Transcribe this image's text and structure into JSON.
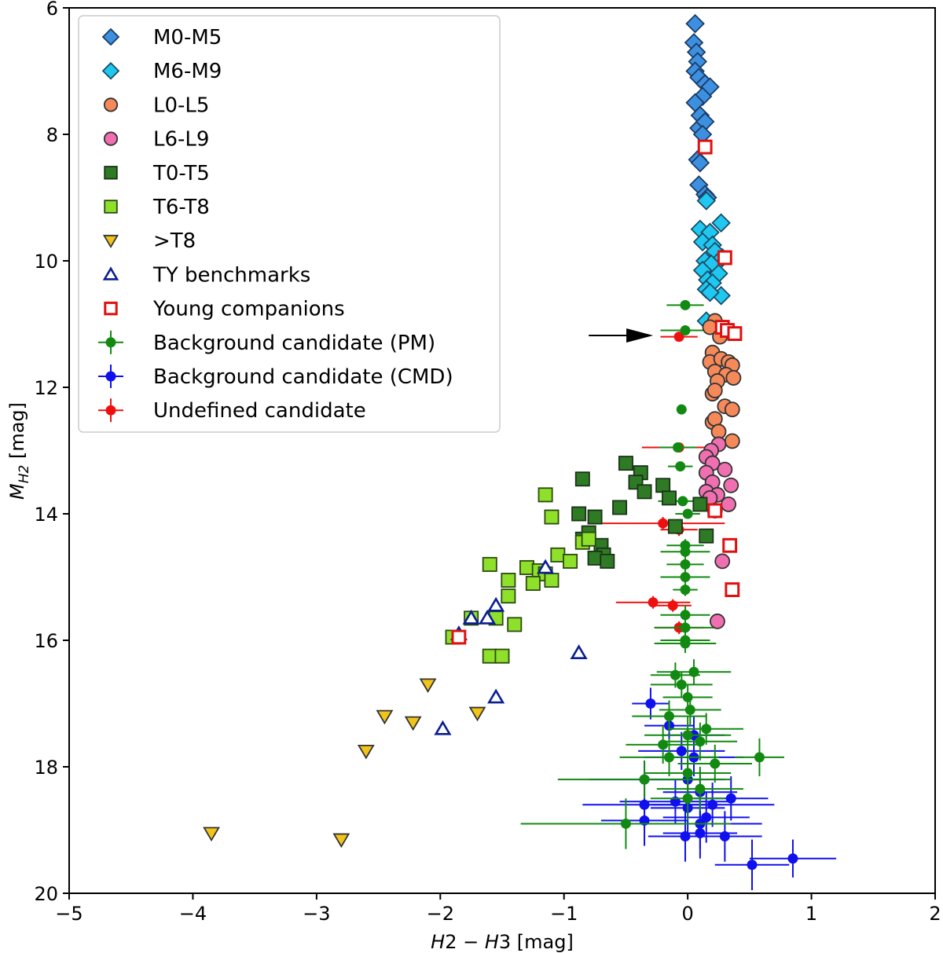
{
  "chart_data": {
    "type": "scatter",
    "xlabel": "H2 − H3 [mag]",
    "ylabel": "M_H2 [mag]",
    "xlim": [
      -5,
      2
    ],
    "ylim": [
      20,
      6
    ],
    "y_inverted": true,
    "xticks": [
      "−5",
      "−4",
      "−3",
      "−2",
      "−1",
      "0",
      "1",
      "2"
    ],
    "yticks": [
      "6",
      "8",
      "10",
      "12",
      "14",
      "16",
      "18",
      "20"
    ],
    "legend_placement": "top-left",
    "grid": false,
    "series": [
      {
        "name": "M0-M5",
        "marker": "diamond",
        "color": "#3d8fdf",
        "edge": "#1a3c66",
        "points": [
          [
            0.06,
            6.25
          ],
          [
            0.05,
            6.55
          ],
          [
            0.07,
            6.7
          ],
          [
            0.08,
            6.85
          ],
          [
            0.06,
            7.0
          ],
          [
            0.09,
            7.1
          ],
          [
            0.14,
            7.2
          ],
          [
            0.18,
            7.25
          ],
          [
            0.12,
            7.4
          ],
          [
            0.06,
            7.5
          ],
          [
            0.1,
            7.7
          ],
          [
            0.09,
            7.9
          ],
          [
            0.14,
            7.8
          ],
          [
            0.12,
            8.0
          ],
          [
            0.08,
            8.4
          ],
          [
            0.1,
            8.45
          ],
          [
            0.09,
            8.8
          ],
          [
            0.14,
            8.95
          ],
          [
            0.16,
            9.0
          ]
        ]
      },
      {
        "name": "M6-M9",
        "marker": "diamond",
        "color": "#1fc8f0",
        "edge": "#1a4c66",
        "points": [
          [
            0.15,
            9.05
          ],
          [
            0.27,
            9.4
          ],
          [
            0.1,
            9.5
          ],
          [
            0.18,
            9.55
          ],
          [
            0.12,
            9.7
          ],
          [
            0.2,
            9.75
          ],
          [
            0.22,
            9.85
          ],
          [
            0.28,
            9.95
          ],
          [
            0.14,
            10.0
          ],
          [
            0.19,
            10.05
          ],
          [
            0.12,
            10.15
          ],
          [
            0.25,
            10.2
          ],
          [
            0.16,
            10.3
          ],
          [
            0.2,
            10.35
          ],
          [
            0.15,
            10.45
          ],
          [
            0.27,
            10.55
          ],
          [
            0.18,
            10.5
          ],
          [
            0.15,
            10.95
          ]
        ]
      },
      {
        "name": "L0-L5",
        "marker": "circle",
        "color": "#f5895a",
        "edge": "#333333",
        "points": [
          [
            0.22,
            10.95
          ],
          [
            0.18,
            11.05
          ],
          [
            0.26,
            11.2
          ],
          [
            0.2,
            11.45
          ],
          [
            0.18,
            11.6
          ],
          [
            0.27,
            11.55
          ],
          [
            0.33,
            11.6
          ],
          [
            0.36,
            11.65
          ],
          [
            0.22,
            11.75
          ],
          [
            0.31,
            11.8
          ],
          [
            0.37,
            11.85
          ],
          [
            0.24,
            11.9
          ],
          [
            0.2,
            12.1
          ],
          [
            0.22,
            12.05
          ],
          [
            0.3,
            12.3
          ],
          [
            0.36,
            12.35
          ],
          [
            0.2,
            12.55
          ],
          [
            0.22,
            12.5
          ],
          [
            0.25,
            12.7
          ],
          [
            0.36,
            12.85
          ]
        ]
      },
      {
        "name": "L6-L9",
        "marker": "circle",
        "color": "#ef6fb0",
        "edge": "#333333",
        "points": [
          [
            0.25,
            12.9
          ],
          [
            0.19,
            13.0
          ],
          [
            0.15,
            13.1
          ],
          [
            0.2,
            13.2
          ],
          [
            0.3,
            13.3
          ],
          [
            0.15,
            13.35
          ],
          [
            0.2,
            13.5
          ],
          [
            0.35,
            13.55
          ],
          [
            0.15,
            13.65
          ],
          [
            0.24,
            13.7
          ],
          [
            0.18,
            13.75
          ],
          [
            0.33,
            13.85
          ],
          [
            0.22,
            13.95
          ],
          [
            0.28,
            14.75
          ],
          [
            0.24,
            15.7
          ]
        ]
      },
      {
        "name": "T0-T5",
        "marker": "square",
        "color": "#2f7a24",
        "edge": "#1a3317",
        "points": [
          [
            -0.5,
            13.2
          ],
          [
            -0.38,
            13.35
          ],
          [
            -0.42,
            13.5
          ],
          [
            -0.2,
            13.55
          ],
          [
            -0.85,
            13.45
          ],
          [
            -0.35,
            13.65
          ],
          [
            -0.15,
            13.75
          ],
          [
            -0.55,
            13.9
          ],
          [
            -0.88,
            14.0
          ],
          [
            -0.75,
            14.05
          ],
          [
            -0.8,
            14.3
          ],
          [
            -0.7,
            14.5
          ],
          [
            -0.85,
            14.4
          ],
          [
            -0.68,
            14.65
          ],
          [
            -0.75,
            14.7
          ],
          [
            -0.65,
            14.75
          ],
          [
            -0.1,
            14.2
          ],
          [
            0.15,
            14.35
          ],
          [
            0.1,
            13.85
          ]
        ]
      },
      {
        "name": "T6-T8",
        "marker": "square",
        "color": "#8ee02a",
        "edge": "#2a4a10",
        "points": [
          [
            -1.15,
            13.7
          ],
          [
            -1.1,
            14.05
          ],
          [
            -0.85,
            14.45
          ],
          [
            -0.8,
            14.4
          ],
          [
            -1.05,
            14.65
          ],
          [
            -0.95,
            14.75
          ],
          [
            -1.6,
            14.8
          ],
          [
            -1.3,
            14.85
          ],
          [
            -1.2,
            14.9
          ],
          [
            -1.15,
            14.95
          ],
          [
            -1.1,
            15.05
          ],
          [
            -1.25,
            15.1
          ],
          [
            -1.45,
            15.05
          ],
          [
            -1.45,
            15.3
          ],
          [
            -1.55,
            15.65
          ],
          [
            -1.75,
            15.65
          ],
          [
            -1.4,
            15.75
          ],
          [
            -1.6,
            16.25
          ],
          [
            -1.5,
            16.25
          ],
          [
            -1.9,
            15.95
          ]
        ]
      },
      {
        "name": ">T8",
        "marker": "triangle-down",
        "color": "#f2c419",
        "edge": "#333333",
        "points": [
          [
            -2.1,
            16.7
          ],
          [
            -2.45,
            17.2
          ],
          [
            -2.22,
            17.3
          ],
          [
            -1.7,
            17.15
          ],
          [
            -2.6,
            17.75
          ],
          [
            -3.85,
            19.05
          ],
          [
            -2.8,
            19.15
          ]
        ]
      },
      {
        "name": "TY benchmarks",
        "marker": "triangle-up",
        "color": "#ffffff",
        "edge": "#0a1f8f",
        "points": [
          [
            -1.15,
            14.85
          ],
          [
            -1.55,
            15.45
          ],
          [
            -1.62,
            15.65
          ],
          [
            -1.75,
            15.65
          ],
          [
            -1.85,
            15.9
          ],
          [
            -0.88,
            16.2
          ],
          [
            -1.55,
            16.9
          ],
          [
            -1.98,
            17.4
          ]
        ]
      },
      {
        "name": "Young companions",
        "marker": "square-open",
        "color": "#ffffff",
        "edge": "#e01010",
        "points": [
          [
            0.14,
            8.2
          ],
          [
            0.3,
            9.95
          ],
          [
            0.28,
            11.05
          ],
          [
            0.32,
            11.1
          ],
          [
            0.38,
            11.15
          ],
          [
            0.22,
            13.95
          ],
          [
            0.34,
            14.5
          ],
          [
            0.36,
            15.2
          ],
          [
            -1.85,
            15.95
          ]
        ]
      },
      {
        "name": "Background candidate (PM)",
        "marker": "errorbar",
        "color": "#128a12",
        "points": [
          [
            -0.02,
            10.7,
            0.15,
            0.0
          ],
          [
            -0.02,
            11.1,
            0.2,
            0.0
          ],
          [
            -0.05,
            12.35,
            0.0,
            0.0
          ],
          [
            -0.08,
            12.95,
            0.15,
            0.0
          ],
          [
            -0.06,
            13.25,
            0.1,
            0.05
          ],
          [
            -0.04,
            13.8,
            0.2,
            0.05
          ],
          [
            0.0,
            14.0,
            0.1,
            0.05
          ],
          [
            -0.02,
            14.5,
            0.15,
            0.1
          ],
          [
            -0.02,
            14.6,
            0.2,
            0.1
          ],
          [
            -0.02,
            14.8,
            0.15,
            0.1
          ],
          [
            -0.02,
            15.0,
            0.2,
            0.1
          ],
          [
            -0.02,
            15.2,
            0.1,
            0.1
          ],
          [
            -0.02,
            15.6,
            0.2,
            0.15
          ],
          [
            -0.02,
            15.8,
            0.25,
            0.15
          ],
          [
            -0.02,
            16.0,
            0.2,
            0.15
          ],
          [
            -0.02,
            16.05,
            0.25,
            0.15
          ],
          [
            -0.1,
            16.55,
            0.2,
            0.2
          ],
          [
            0.05,
            16.5,
            0.3,
            0.2
          ],
          [
            -0.05,
            16.7,
            0.25,
            0.2
          ],
          [
            0.0,
            16.9,
            0.2,
            0.2
          ],
          [
            0.02,
            17.1,
            0.25,
            0.25
          ],
          [
            -0.15,
            17.2,
            0.3,
            0.25
          ],
          [
            0.15,
            17.4,
            0.3,
            0.25
          ],
          [
            0.0,
            17.5,
            0.35,
            0.3
          ],
          [
            -0.2,
            17.65,
            0.3,
            0.3
          ],
          [
            0.1,
            17.6,
            0.3,
            0.3
          ],
          [
            -0.15,
            17.85,
            0.4,
            0.3
          ],
          [
            0.22,
            17.95,
            0.3,
            0.3
          ],
          [
            0.58,
            17.85,
            0.2,
            0.3
          ],
          [
            0.0,
            18.1,
            0.35,
            0.3
          ],
          [
            -0.35,
            18.2,
            0.7,
            0.3
          ],
          [
            0.1,
            18.35,
            0.35,
            0.35
          ],
          [
            0.0,
            18.5,
            0.3,
            0.35
          ],
          [
            -0.5,
            18.9,
            0.85,
            0.4
          ]
        ]
      },
      {
        "name": "Background candidate (CMD)",
        "marker": "errorbar",
        "color": "#1010ee",
        "points": [
          [
            -0.3,
            17.0,
            0.15,
            0.25
          ],
          [
            -0.15,
            17.35,
            0.2,
            0.3
          ],
          [
            0.05,
            17.5,
            0.25,
            0.3
          ],
          [
            -0.05,
            17.75,
            0.35,
            0.3
          ],
          [
            0.05,
            17.85,
            0.4,
            0.3
          ],
          [
            -0.35,
            18.2,
            0.45,
            0.3
          ],
          [
            0.0,
            18.2,
            0.3,
            0.3
          ],
          [
            0.1,
            18.4,
            0.3,
            0.35
          ],
          [
            0.35,
            18.5,
            0.3,
            0.35
          ],
          [
            -0.1,
            18.55,
            0.45,
            0.35
          ],
          [
            -0.35,
            18.6,
            0.5,
            0.35
          ],
          [
            0.2,
            18.6,
            0.5,
            0.35
          ],
          [
            0.0,
            18.65,
            0.3,
            0.4
          ],
          [
            -0.35,
            18.85,
            0.35,
            0.4
          ],
          [
            0.15,
            18.8,
            0.35,
            0.4
          ],
          [
            0.1,
            18.9,
            0.5,
            0.4
          ],
          [
            -0.02,
            19.1,
            0.3,
            0.4
          ],
          [
            0.1,
            19.05,
            0.3,
            0.4
          ],
          [
            0.3,
            19.1,
            0.3,
            0.4
          ],
          [
            0.52,
            19.55,
            0.3,
            0.4
          ],
          [
            0.85,
            19.45,
            0.35,
            0.3
          ]
        ]
      },
      {
        "name": "Undefined candidate",
        "marker": "errorbar",
        "color": "#ee1010",
        "points": [
          [
            -0.07,
            11.2,
            0.15,
            0.0
          ],
          [
            -0.07,
            12.95,
            0.3,
            0.0
          ],
          [
            -0.2,
            14.15,
            0.5,
            0.1
          ],
          [
            -0.07,
            14.25,
            0.15,
            0.1
          ],
          [
            -0.28,
            15.4,
            0.3,
            0.1
          ],
          [
            -0.12,
            15.45,
            0.15,
            0.1
          ],
          [
            -0.07,
            15.8,
            0.2,
            0.1
          ]
        ]
      }
    ],
    "annotation_arrow": {
      "from": [
        -0.8,
        11.18
      ],
      "to": [
        -0.28,
        11.18
      ]
    }
  }
}
